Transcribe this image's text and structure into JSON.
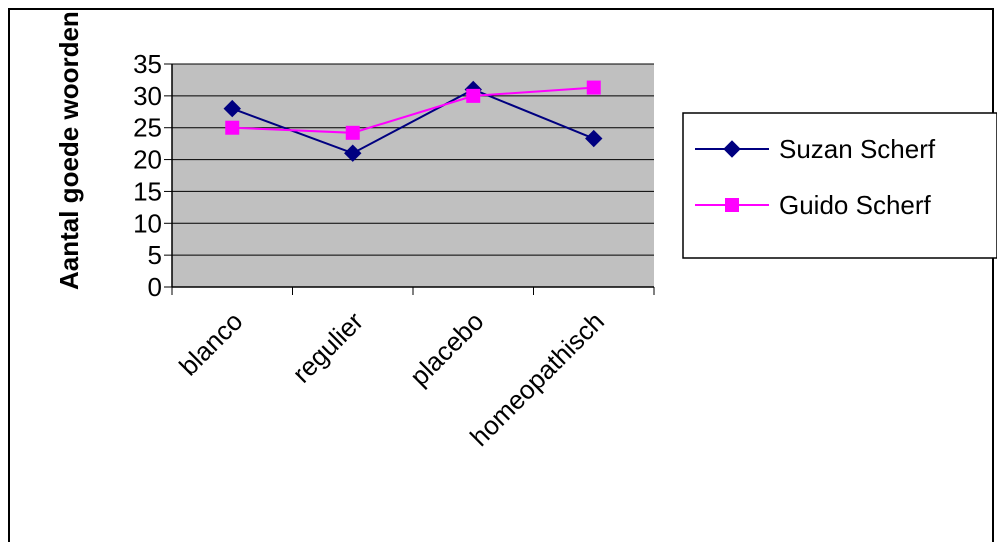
{
  "chart_data": {
    "type": "line",
    "title": "",
    "xlabel": "",
    "ylabel": "Aantal goede woorden",
    "categories": [
      "blanco",
      "regulier",
      "placebo",
      "homeopathisch"
    ],
    "ylim": [
      0,
      35
    ],
    "yticks": [
      "0",
      "5",
      "10",
      "15",
      "20",
      "25",
      "30",
      "35"
    ],
    "grid": true,
    "plot_background": "#c0c0c0",
    "legend_position": "right",
    "series": [
      {
        "name": "Suzan Scherf",
        "values": [
          28,
          21,
          31,
          23.3
        ],
        "color": "#000080",
        "marker": "diamond"
      },
      {
        "name": "Guido Scherf",
        "values": [
          25,
          24.2,
          30,
          31.3
        ],
        "color": "#ff00ff",
        "marker": "square"
      }
    ]
  }
}
